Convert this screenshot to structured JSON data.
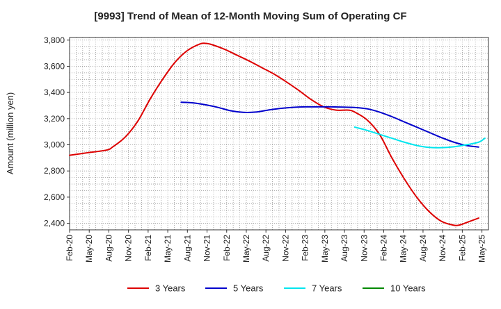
{
  "chart_data": {
    "type": "line",
    "title": "[9993]  Trend of Mean of 12-Month Moving Sum of Operating CF",
    "xlabel": "",
    "ylabel": "Amount (million yen)",
    "ylim": [
      2350,
      3820
    ],
    "yticks": [
      2400,
      2600,
      2800,
      3000,
      3200,
      3400,
      3600,
      3800
    ],
    "ytick_labels": [
      "2,400",
      "2,600",
      "2,800",
      "3,000",
      "3,200",
      "3,400",
      "3,600",
      "3,800"
    ],
    "grid": true,
    "legend_position": "bottom",
    "x_start": "Feb-20",
    "n_months": 64,
    "x_tick_labels": [
      "Feb-20",
      "May-20",
      "Aug-20",
      "Nov-20",
      "Feb-21",
      "May-21",
      "Aug-21",
      "Nov-21",
      "Feb-22",
      "May-22",
      "Aug-22",
      "Nov-22",
      "Feb-23",
      "May-23",
      "Aug-23",
      "Nov-23",
      "Feb-24",
      "May-24",
      "Aug-24",
      "Nov-24",
      "Feb-25",
      "May-25"
    ],
    "series": [
      {
        "name": "3 Years",
        "color": "#dd0000",
        "points": [
          [
            0,
            2920
          ],
          [
            3,
            2940
          ],
          [
            6,
            2960
          ],
          [
            7,
            2985
          ],
          [
            9,
            3060
          ],
          [
            11,
            3180
          ],
          [
            13,
            3350
          ],
          [
            15,
            3500
          ],
          [
            17,
            3630
          ],
          [
            19,
            3720
          ],
          [
            21,
            3770
          ],
          [
            22,
            3775
          ],
          [
            23,
            3765
          ],
          [
            25,
            3730
          ],
          [
            27,
            3685
          ],
          [
            29,
            3640
          ],
          [
            31,
            3590
          ],
          [
            33,
            3540
          ],
          [
            35,
            3480
          ],
          [
            37,
            3415
          ],
          [
            39,
            3345
          ],
          [
            41,
            3290
          ],
          [
            43,
            3265
          ],
          [
            45,
            3265
          ],
          [
            46,
            3250
          ],
          [
            48,
            3190
          ],
          [
            50,
            3080
          ],
          [
            52,
            2900
          ],
          [
            54,
            2740
          ],
          [
            56,
            2600
          ],
          [
            58,
            2490
          ],
          [
            60,
            2415
          ],
          [
            62,
            2385
          ],
          [
            63,
            2388
          ],
          [
            64,
            2405
          ],
          [
            66,
            2440
          ]
        ]
      },
      {
        "name": "5 Years",
        "color": "#0000cc",
        "points": [
          [
            18,
            3325
          ],
          [
            20,
            3320
          ],
          [
            22,
            3305
          ],
          [
            24,
            3285
          ],
          [
            26,
            3260
          ],
          [
            28,
            3248
          ],
          [
            30,
            3250
          ],
          [
            32,
            3265
          ],
          [
            34,
            3278
          ],
          [
            36,
            3286
          ],
          [
            38,
            3290
          ],
          [
            40,
            3290
          ],
          [
            42,
            3290
          ],
          [
            44,
            3288
          ],
          [
            46,
            3285
          ],
          [
            48,
            3275
          ],
          [
            50,
            3250
          ],
          [
            52,
            3215
          ],
          [
            54,
            3175
          ],
          [
            56,
            3135
          ],
          [
            58,
            3095
          ],
          [
            60,
            3055
          ],
          [
            62,
            3020
          ],
          [
            64,
            2995
          ],
          [
            66,
            2983
          ]
        ]
      },
      {
        "name": "7 Years",
        "color": "#00e5ee",
        "points": [
          [
            46,
            3135
          ],
          [
            48,
            3110
          ],
          [
            50,
            3080
          ],
          [
            52,
            3050
          ],
          [
            54,
            3020
          ],
          [
            56,
            2995
          ],
          [
            58,
            2980
          ],
          [
            60,
            2978
          ],
          [
            62,
            2985
          ],
          [
            64,
            3000
          ],
          [
            66,
            3020
          ],
          [
            67,
            3050
          ]
        ]
      },
      {
        "name": "10 Years",
        "color": "#008800",
        "points": []
      }
    ]
  }
}
